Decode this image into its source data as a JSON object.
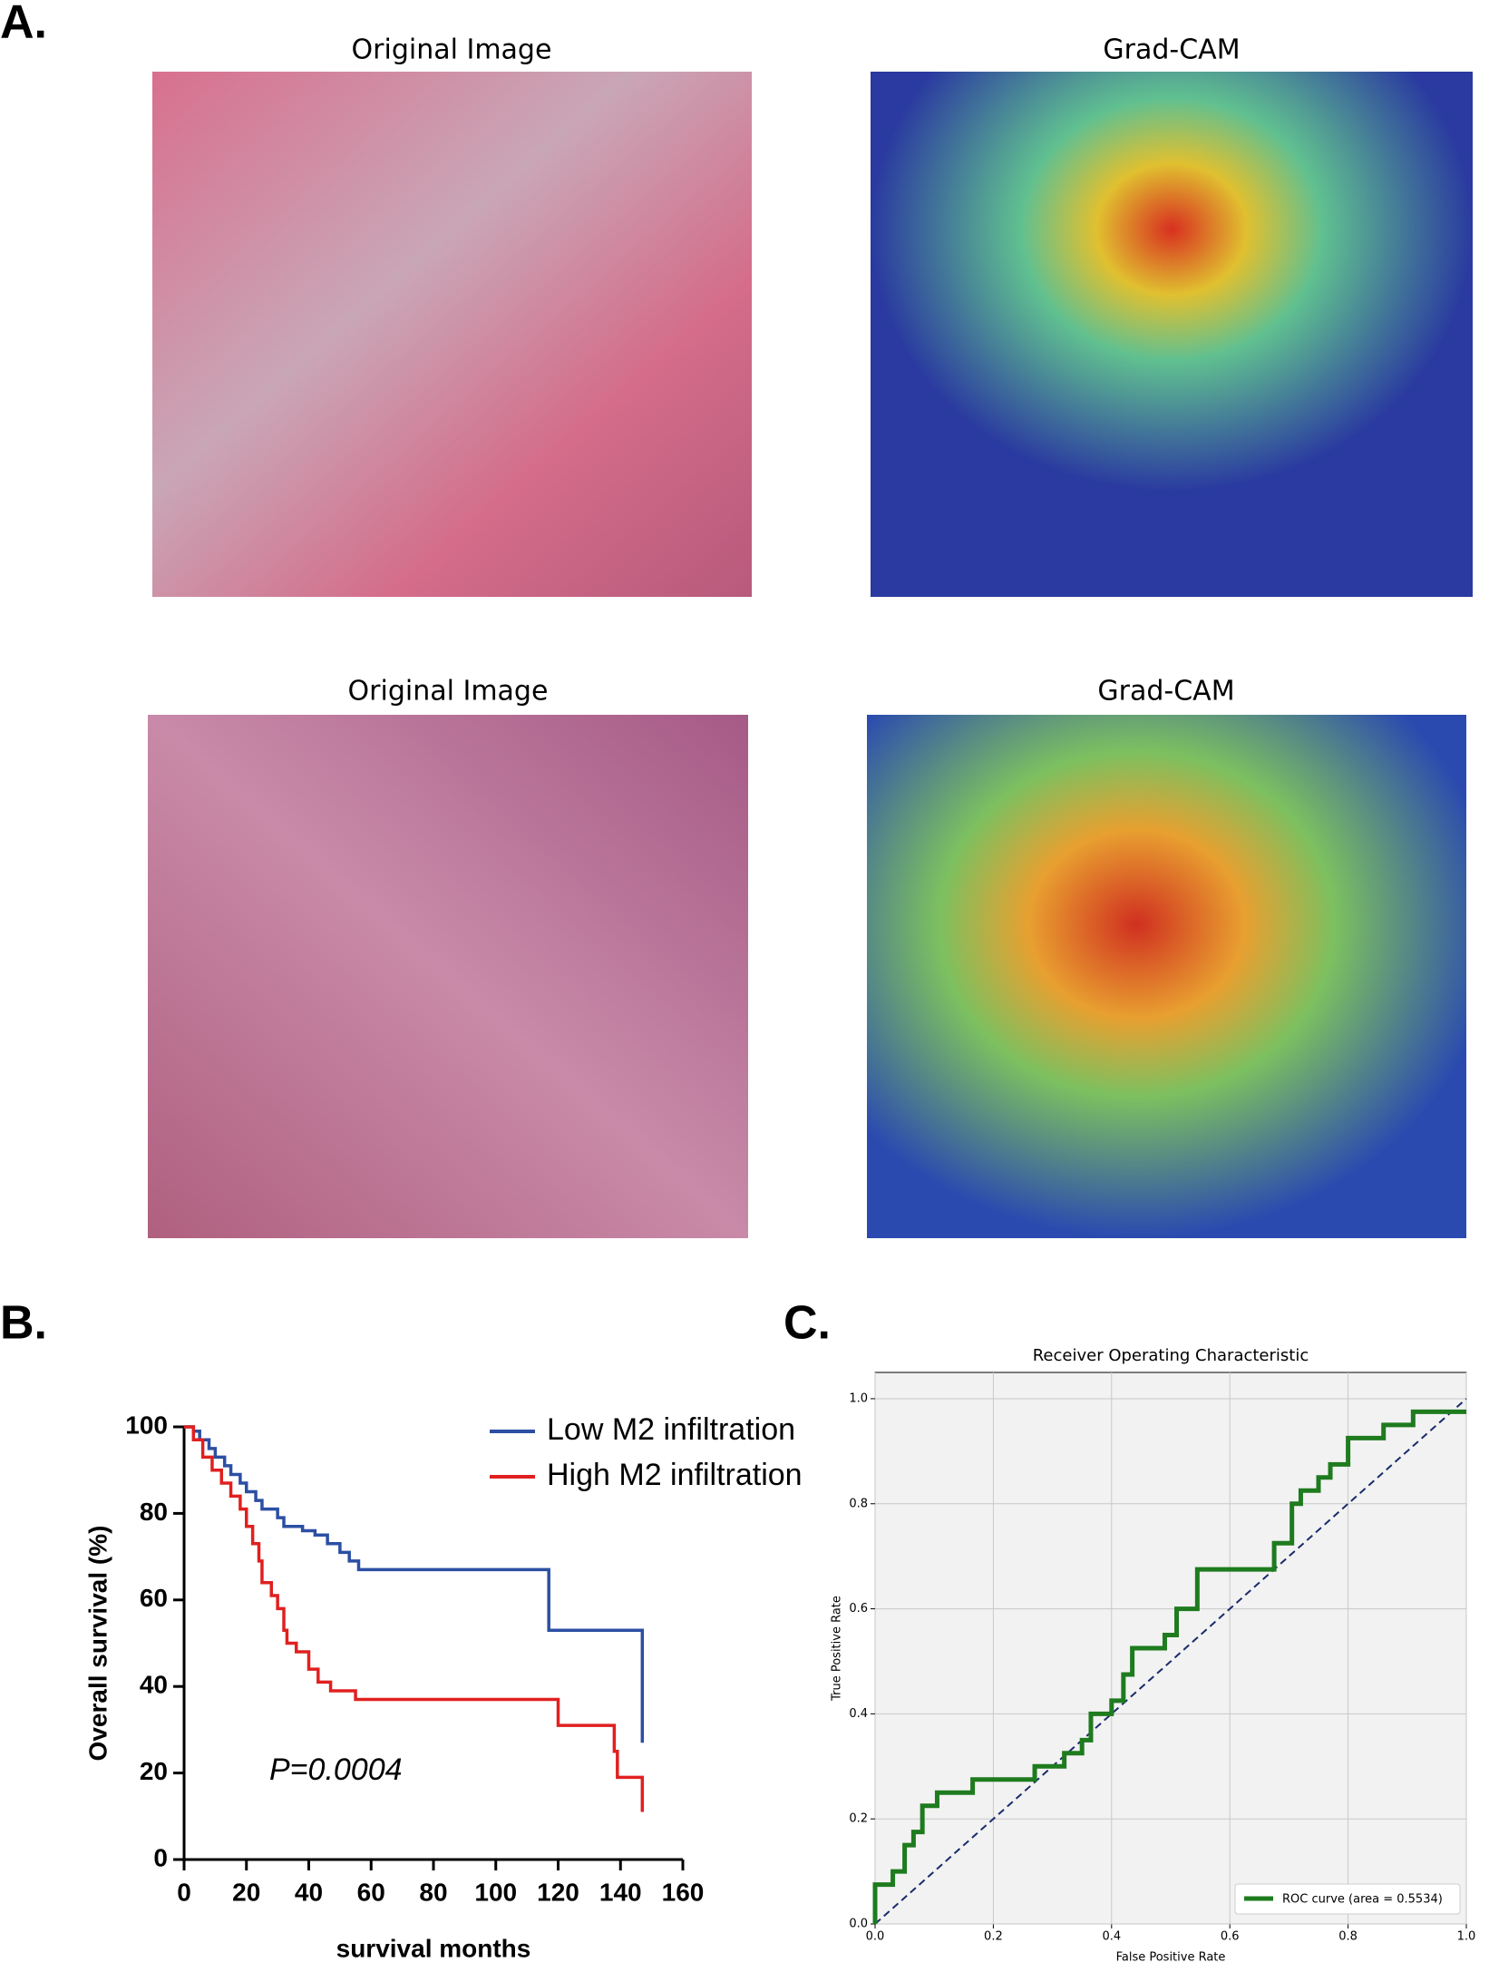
{
  "figure": {
    "panel_labels": [
      "A.",
      "B.",
      "C."
    ],
    "images": [
      {
        "title": "Original Image"
      },
      {
        "title": "Grad-CAM"
      },
      {
        "title": "Original Image"
      },
      {
        "title": "Grad-CAM"
      }
    ]
  },
  "chart_data": [
    {
      "type": "step",
      "xlabel": "survival months",
      "ylabel": "Overall survival (%)",
      "annotation": "P=0.0004",
      "xlim": [
        0,
        160
      ],
      "xticks": [
        0,
        20,
        40,
        60,
        80,
        100,
        120,
        140,
        160
      ],
      "ylim": [
        0,
        100
      ],
      "yticks": [
        0,
        20,
        40,
        60,
        80,
        100
      ],
      "legend": "upper right",
      "series": [
        {
          "name": "Low M2 infiltration",
          "color": "#2c4fa3",
          "x": [
            0,
            3,
            5,
            8,
            10,
            13,
            15,
            18,
            20,
            23,
            25,
            30,
            32,
            38,
            42,
            46,
            50,
            53,
            56,
            117,
            146,
            147
          ],
          "values": [
            100,
            99,
            97,
            95,
            93,
            91,
            89,
            87,
            85,
            83,
            81,
            79,
            77,
            76,
            75,
            73,
            71,
            69,
            67,
            53,
            53,
            27
          ]
        },
        {
          "name": "High M2 infiltration",
          "color": "#e02020",
          "x": [
            0,
            3,
            6,
            9,
            12,
            15,
            18,
            20,
            22,
            24,
            25,
            28,
            30,
            32,
            33,
            36,
            40,
            43,
            47,
            55,
            120,
            138,
            139,
            147
          ],
          "values": [
            100,
            97,
            93,
            90,
            87,
            84,
            81,
            77,
            73,
            69,
            64,
            61,
            58,
            53,
            50,
            48,
            44,
            41,
            39,
            37,
            31,
            25,
            19,
            11
          ]
        }
      ]
    },
    {
      "type": "line",
      "title": "Receiver Operating Characteristic",
      "xlabel": "False Positive Rate",
      "ylabel": "True Positive Rate",
      "xlim": [
        0,
        1
      ],
      "xticks": [
        {
          "value": 0,
          "label": "0.0"
        },
        0.2,
        0.4,
        0.6,
        0.8,
        {
          "value": 1,
          "label": "1.0"
        }
      ],
      "ylim": [
        0,
        1.05
      ],
      "yticks": [
        {
          "value": 0,
          "label": "0.0"
        },
        0.2,
        0.4,
        0.6,
        0.8,
        {
          "value": 1,
          "label": "1.0"
        }
      ],
      "grid": true,
      "legend": "lower right",
      "series": [
        {
          "name": "ROC curve (area = 0.5534)",
          "color": "#1e7b1e",
          "x": [
            0,
            0,
            0,
            0.03,
            0.03,
            0.05,
            0.05,
            0.065,
            0.065,
            0.08,
            0.08,
            0.105,
            0.105,
            0.165,
            0.165,
            0.27,
            0.27,
            0.32,
            0.32,
            0.35,
            0.35,
            0.365,
            0.365,
            0.4,
            0.4,
            0.42,
            0.42,
            0.435,
            0.435,
            0.49,
            0.49,
            0.51,
            0.51,
            0.545,
            0.545,
            0.675,
            0.675,
            0.705,
            0.705,
            0.72,
            0.72,
            0.75,
            0.75,
            0.77,
            0.77,
            0.8,
            0.8,
            0.86,
            0.86,
            0.91,
            0.91,
            1
          ],
          "values": [
            0,
            0.025,
            0.075,
            0.075,
            0.1,
            0.1,
            0.15,
            0.15,
            0.175,
            0.175,
            0.225,
            0.225,
            0.25,
            0.25,
            0.275,
            0.275,
            0.3,
            0.3,
            0.325,
            0.325,
            0.35,
            0.35,
            0.4,
            0.4,
            0.425,
            0.425,
            0.475,
            0.475,
            0.525,
            0.525,
            0.55,
            0.55,
            0.6,
            0.6,
            0.675,
            0.675,
            0.725,
            0.725,
            0.8,
            0.8,
            0.825,
            0.825,
            0.85,
            0.85,
            0.875,
            0.875,
            0.925,
            0.925,
            0.95,
            0.95,
            0.975,
            0.975
          ]
        }
      ]
    }
  ]
}
